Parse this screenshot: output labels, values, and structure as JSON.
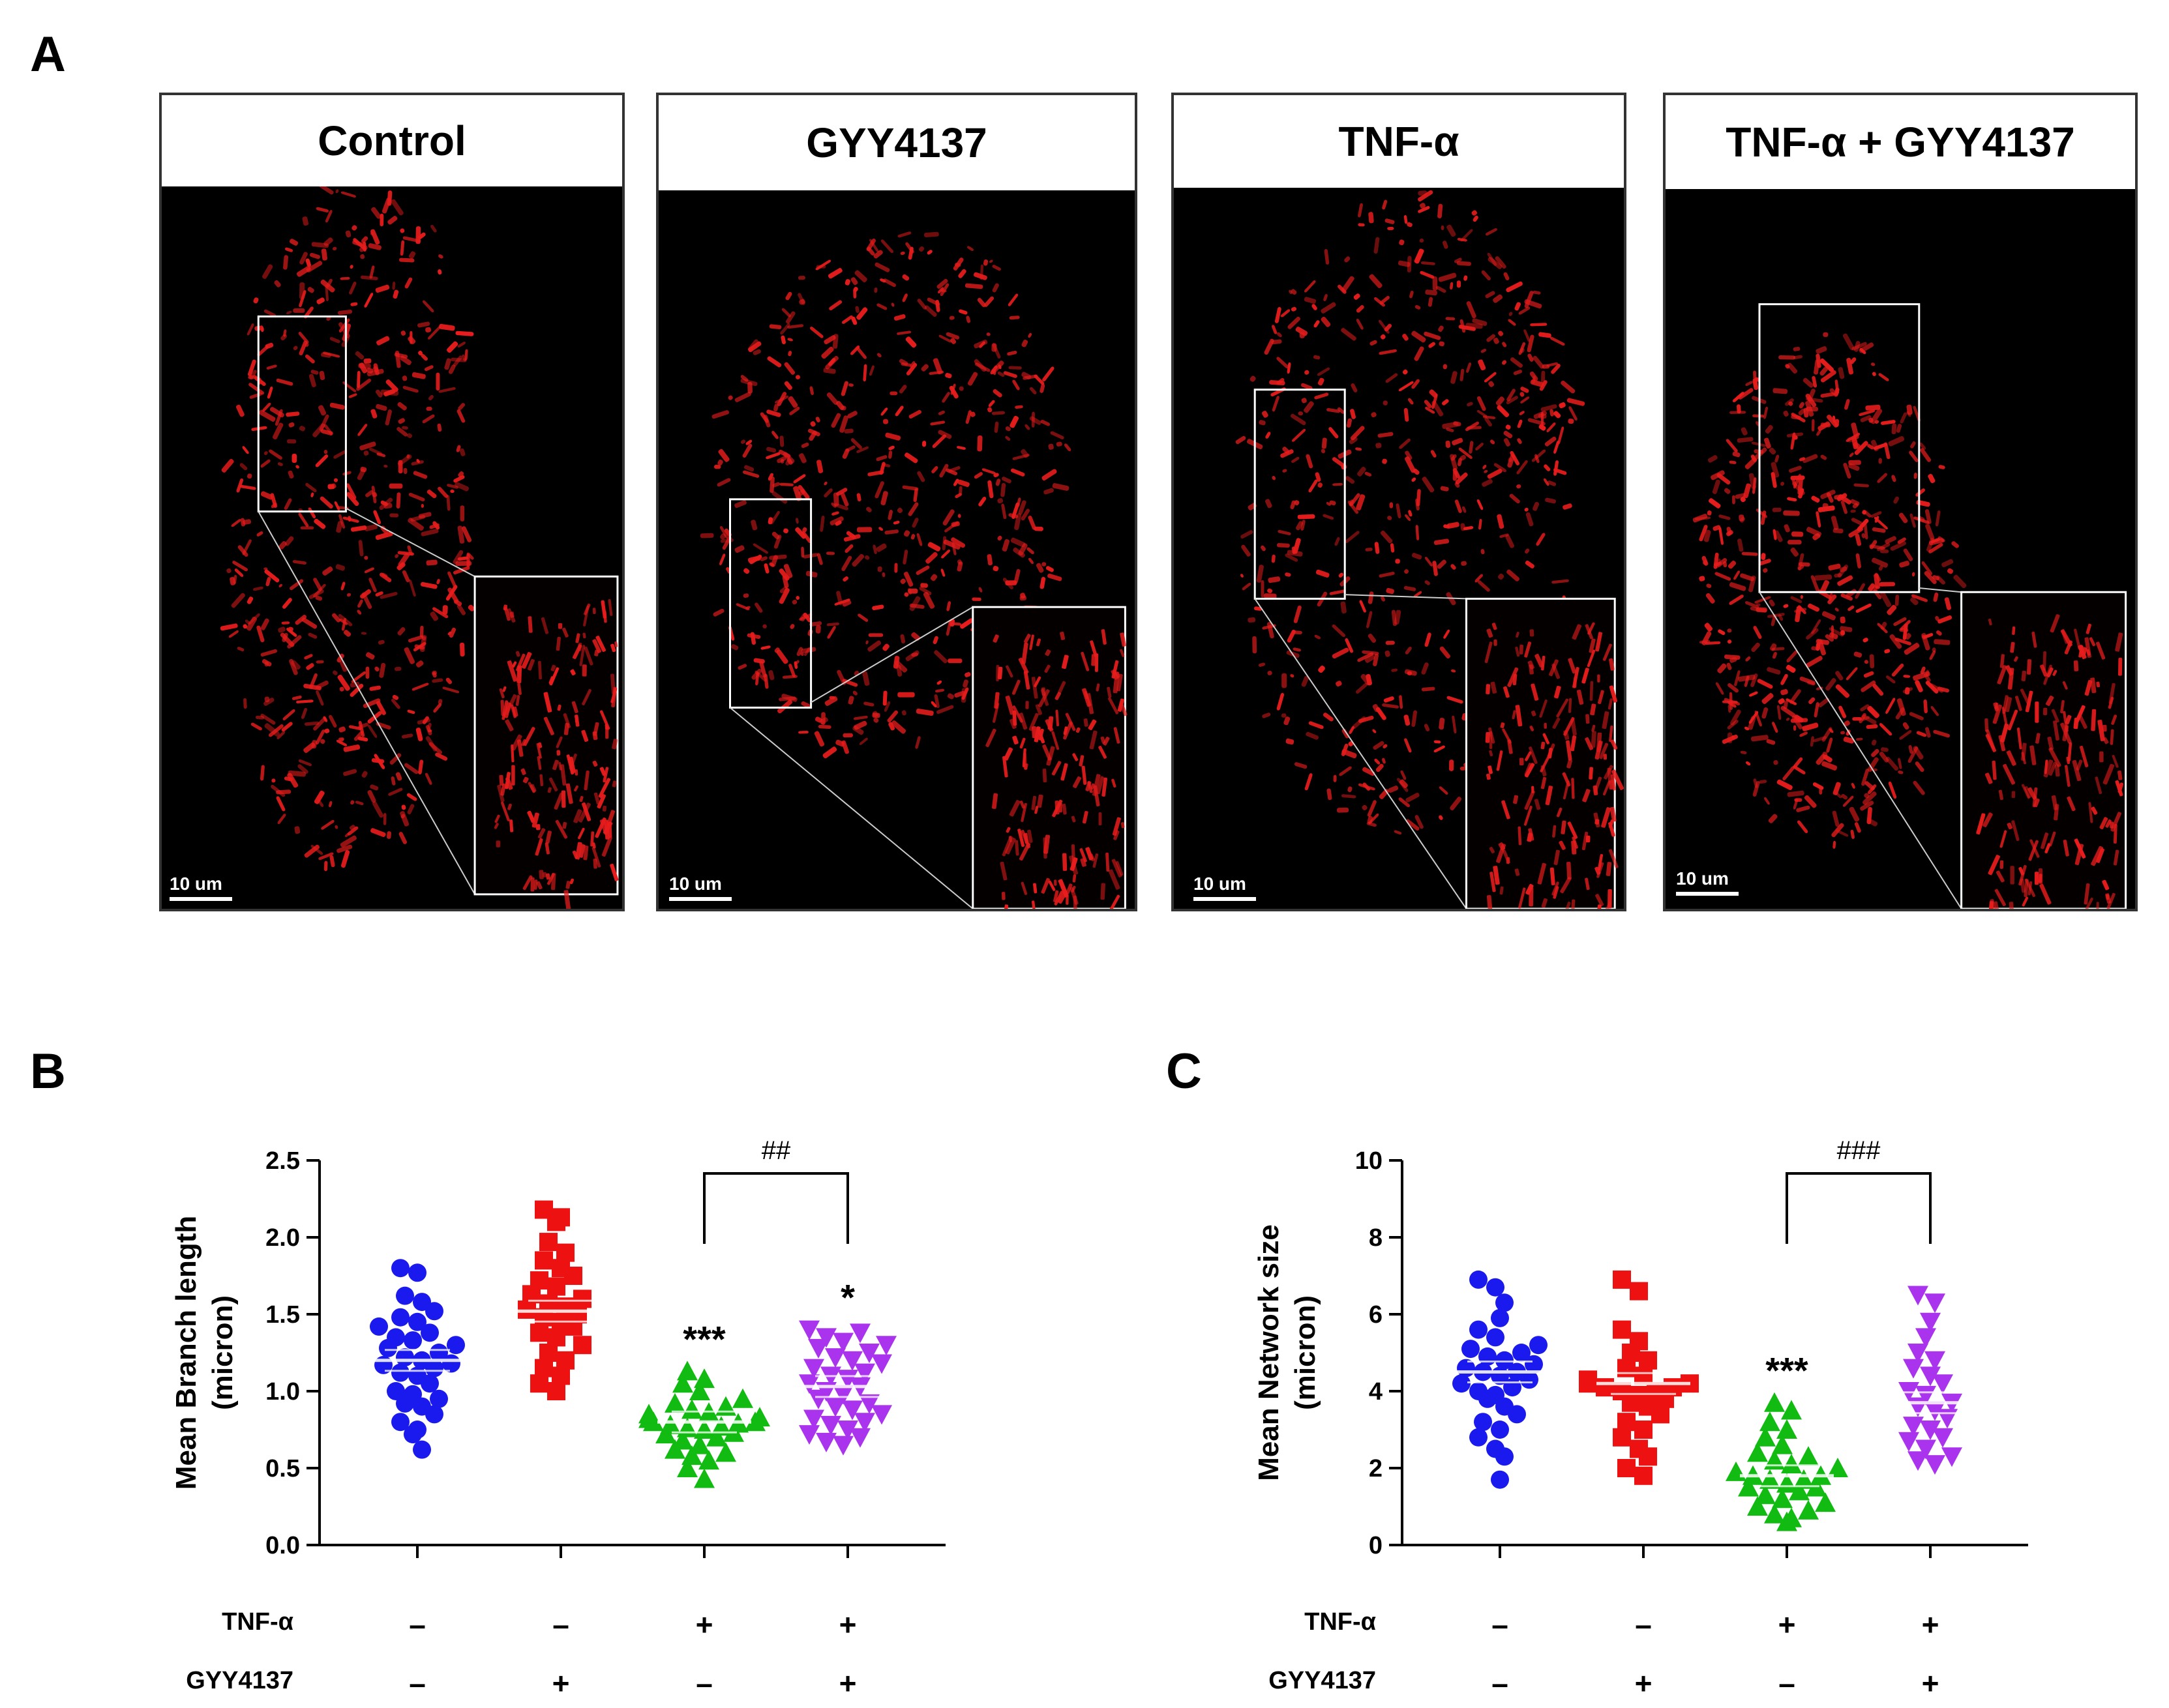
{
  "panel_a": {
    "letter": "A",
    "images": [
      {
        "title": "Control",
        "scale": "10 um"
      },
      {
        "title": "GYY4137",
        "scale": "10 um"
      },
      {
        "title": "TNF-α",
        "scale": "10 um"
      },
      {
        "title": "TNF-α + GYY4137",
        "scale": "10 um"
      }
    ]
  },
  "panel_b": {
    "letter": "B"
  },
  "panel_c": {
    "letter": "C"
  },
  "conditions": {
    "row_labels": [
      "TNF-α",
      "GYY4137"
    ],
    "tnf": [
      "–",
      "–",
      "+",
      "+"
    ],
    "gyy": [
      "–",
      "+",
      "–",
      "+"
    ]
  },
  "colors": {
    "control": "#1a1aee",
    "gyy": "#ee1111",
    "tnf": "#11bb11",
    "tnf_gyy": "#aa33ee",
    "mito": "#e81c1c"
  },
  "chart_data": [
    {
      "type": "scatter",
      "ylabel": "Mean Branch length\n(micron)",
      "ylim": [
        0,
        2.5
      ],
      "yticks": [
        "0.0",
        "0.5",
        "1.0",
        "1.5",
        "2.0",
        "2.5"
      ],
      "markers": [
        "circle",
        "square",
        "triangle-up",
        "triangle-down"
      ],
      "significance": [
        "",
        "",
        "***",
        "*"
      ],
      "bracket": {
        "from": 2,
        "to": 3,
        "label": "##"
      },
      "groups": [
        {
          "mean": 1.2,
          "values": [
            1.8,
            1.77,
            1.62,
            1.58,
            1.52,
            1.48,
            1.45,
            1.42,
            1.38,
            1.35,
            1.33,
            1.3,
            1.28,
            1.25,
            1.22,
            1.2,
            1.18,
            1.17,
            1.15,
            1.12,
            1.1,
            1.05,
            1.0,
            0.98,
            0.95,
            0.92,
            0.9,
            0.85,
            0.8,
            0.75,
            0.72,
            0.62
          ]
        },
        {
          "mean": 1.52,
          "values": [
            2.18,
            2.13,
            2.1,
            1.97,
            1.9,
            1.85,
            1.8,
            1.75,
            1.72,
            1.68,
            1.63,
            1.6,
            1.57,
            1.55,
            1.53,
            1.5,
            1.48,
            1.45,
            1.42,
            1.38,
            1.35,
            1.3,
            1.25,
            1.2,
            1.15,
            1.1,
            1.05,
            1.0
          ]
        },
        {
          "mean": 0.8,
          "values": [
            1.13,
            1.08,
            1.05,
            1.0,
            0.95,
            0.92,
            0.9,
            0.88,
            0.86,
            0.85,
            0.83,
            0.82,
            0.8,
            0.8,
            0.79,
            0.78,
            0.77,
            0.76,
            0.75,
            0.73,
            0.72,
            0.7,
            0.68,
            0.65,
            0.62,
            0.6,
            0.58,
            0.55,
            0.5,
            0.43
          ]
        },
        {
          "mean": 1.03,
          "values": [
            1.4,
            1.38,
            1.35,
            1.32,
            1.3,
            1.28,
            1.25,
            1.22,
            1.2,
            1.18,
            1.15,
            1.12,
            1.1,
            1.08,
            1.05,
            1.03,
            1.0,
            0.98,
            0.95,
            0.92,
            0.9,
            0.88,
            0.85,
            0.82,
            0.8,
            0.78,
            0.75,
            0.72,
            0.7,
            0.67,
            0.65
          ]
        }
      ]
    },
    {
      "type": "scatter",
      "ylabel": "Mean Network size\n(micron)",
      "ylim": [
        0,
        10
      ],
      "yticks": [
        "0",
        "2",
        "4",
        "6",
        "8",
        "10"
      ],
      "markers": [
        "circle",
        "square",
        "triangle-up",
        "triangle-down"
      ],
      "significance": [
        "",
        "",
        "***",
        ""
      ],
      "bracket": {
        "from": 2,
        "to": 3,
        "label": "###"
      },
      "groups": [
        {
          "mean": 4.5,
          "values": [
            6.9,
            6.7,
            6.3,
            5.9,
            5.6,
            5.4,
            5.2,
            5.1,
            5.0,
            4.9,
            4.8,
            4.7,
            4.6,
            4.5,
            4.5,
            4.4,
            4.3,
            4.2,
            4.1,
            4.0,
            3.9,
            3.8,
            3.6,
            3.4,
            3.2,
            3.0,
            2.8,
            2.5,
            2.3,
            1.7
          ]
        },
        {
          "mean": 4.2,
          "values": [
            6.9,
            6.6,
            5.6,
            5.3,
            5.0,
            4.8,
            4.6,
            4.4,
            4.3,
            4.2,
            4.2,
            4.1,
            4.1,
            4.0,
            4.0,
            3.9,
            3.8,
            3.7,
            3.6,
            3.4,
            3.2,
            3.0,
            2.8,
            2.5,
            2.3,
            2.0,
            1.8
          ]
        },
        {
          "mean": 1.8,
          "values": [
            3.7,
            3.5,
            3.2,
            3.0,
            2.8,
            2.6,
            2.4,
            2.3,
            2.2,
            2.1,
            2.0,
            1.9,
            1.8,
            1.8,
            1.7,
            1.7,
            1.6,
            1.5,
            1.5,
            1.4,
            1.3,
            1.2,
            1.1,
            1.0,
            0.9,
            0.8,
            0.7,
            0.6
          ]
        },
        {
          "mean": 3.7,
          "values": [
            6.5,
            6.3,
            5.8,
            5.4,
            5.0,
            4.8,
            4.6,
            4.4,
            4.2,
            4.0,
            3.9,
            3.7,
            3.6,
            3.5,
            3.3,
            3.1,
            3.0,
            2.8,
            2.7,
            2.5,
            2.3,
            2.2,
            2.1
          ]
        }
      ]
    }
  ]
}
